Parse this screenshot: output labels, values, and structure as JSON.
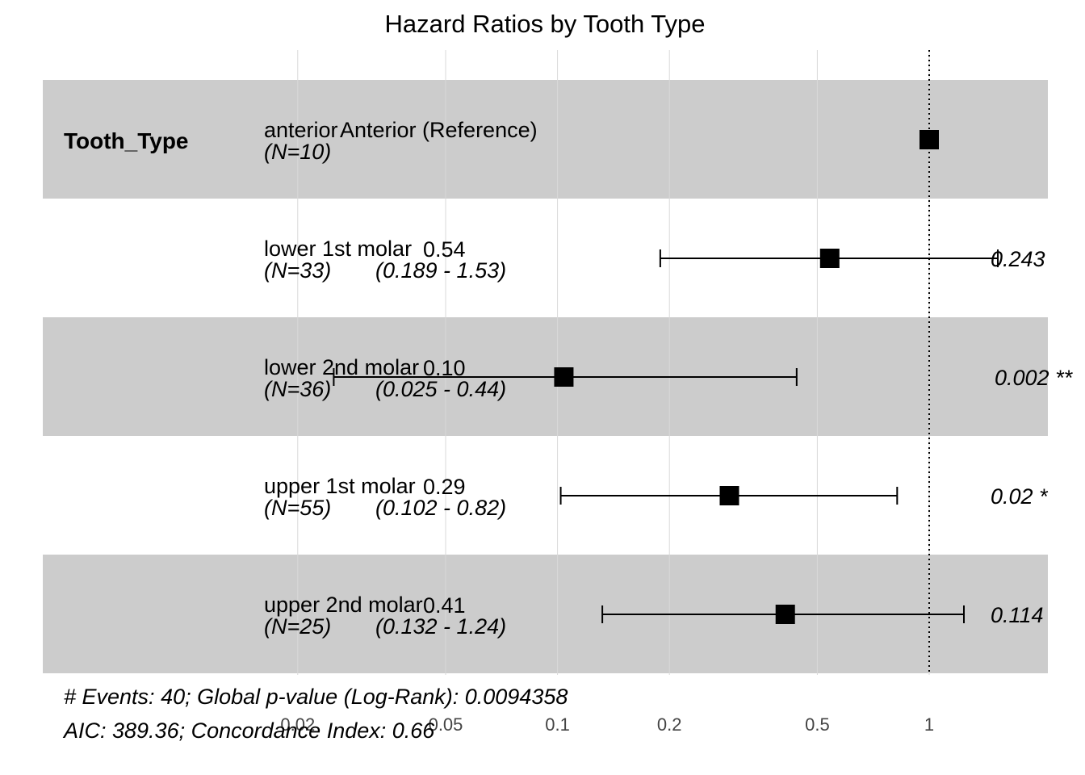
{
  "chart_data": {
    "type": "forest",
    "title": "Hazard Ratios by Tooth Type",
    "variable": "Tooth_Type",
    "x_scale": "log",
    "x_ticks": [
      0.02,
      0.05,
      0.1,
      0.2,
      0.5,
      1
    ],
    "x_tick_labels": [
      "0.02",
      "0.05",
      "0.1",
      "0.2",
      "0.5",
      "1"
    ],
    "reference_line": 1,
    "rows": [
      {
        "level": "anterior",
        "n_label": "(N=10)",
        "estimate_text": "Reference",
        "estimate_text_full": "Anterior (Reference)",
        "ci_text": "",
        "p_text": "",
        "hr": 1.0,
        "lower": null,
        "upper": null,
        "reference": true
      },
      {
        "level": "lower 1st molar",
        "n_label": "(N=33)",
        "estimate_text": "0.54",
        "ci_text": "(0.189 - 1.53)",
        "p_text": "0.243",
        "hr": 0.54,
        "lower": 0.189,
        "upper": 1.53,
        "reference": false
      },
      {
        "level": "lower 2nd molar",
        "n_label": "(N=36)",
        "estimate_text": "0.10",
        "ci_text": "(0.025 - 0.44)",
        "p_text": "0.002 **",
        "hr": 0.104,
        "lower": 0.025,
        "upper": 0.44,
        "reference": false
      },
      {
        "level": "upper 1st molar",
        "n_label": "(N=55)",
        "estimate_text": "0.29",
        "ci_text": "(0.102 - 0.82)",
        "p_text": "0.02 *",
        "hr": 0.29,
        "lower": 0.102,
        "upper": 0.82,
        "reference": false
      },
      {
        "level": "upper 2nd molar",
        "n_label": "(N=25)",
        "estimate_text": "0.41",
        "ci_text": "(0.132 - 1.24)",
        "p_text": "0.114",
        "hr": 0.41,
        "lower": 0.132,
        "upper": 1.24,
        "reference": false
      }
    ],
    "footer": [
      "# Events: 40; Global p-value (Log-Rank): 0.0094358",
      "AIC: 389.36; Concordance Index: 0.66"
    ],
    "colors": {
      "band": "#cccccc",
      "marker": "#000000",
      "grid": "#d9d9d9"
    }
  }
}
